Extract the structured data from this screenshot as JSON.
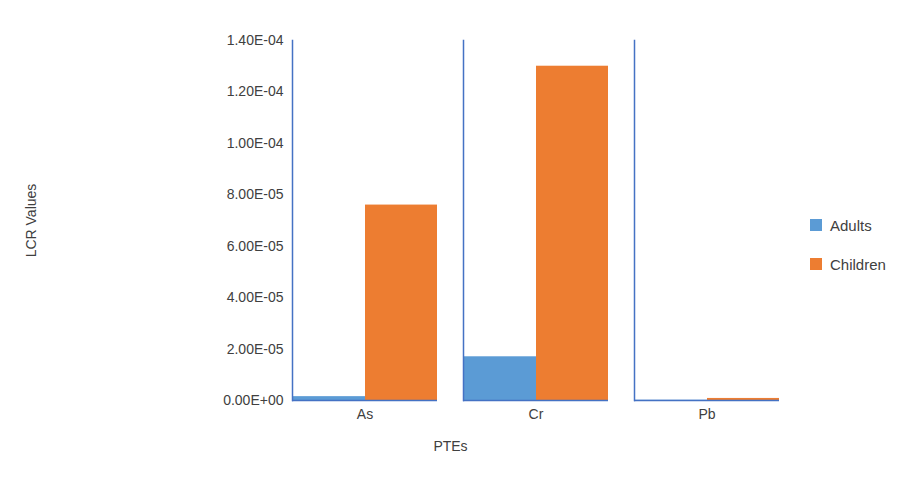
{
  "chart_data": {
    "type": "bar",
    "x_label": "PTEs",
    "y_label": "LCR Values",
    "categories": [
      null,
      "As",
      "Cr",
      "Pb"
    ],
    "series": [
      {
        "name": "Adults",
        "color": "#5b9bd5",
        "values": [
          null,
          1.5e-06,
          1.7e-05,
          1e-07
        ]
      },
      {
        "name": "Children",
        "color": "#ed7d31",
        "values": [
          null,
          7.6e-05,
          0.00013,
          8e-07
        ]
      }
    ],
    "ylim": [
      0,
      0.00014
    ],
    "yticks": [
      {
        "value": 0,
        "label": "0.00E+00"
      },
      {
        "value": 2e-05,
        "label": "2.00E-05"
      },
      {
        "value": 4e-05,
        "label": "4.00E-05"
      },
      {
        "value": 6e-05,
        "label": "6.00E-05"
      },
      {
        "value": 8e-05,
        "label": "8.00E-05"
      },
      {
        "value": 0.0001,
        "label": "1.00E-04"
      },
      {
        "value": 0.00012,
        "label": "1.20E-04"
      },
      {
        "value": 0.00014,
        "label": "1.40E-04"
      }
    ],
    "grid": false,
    "legend": "right",
    "data_labels": false
  }
}
